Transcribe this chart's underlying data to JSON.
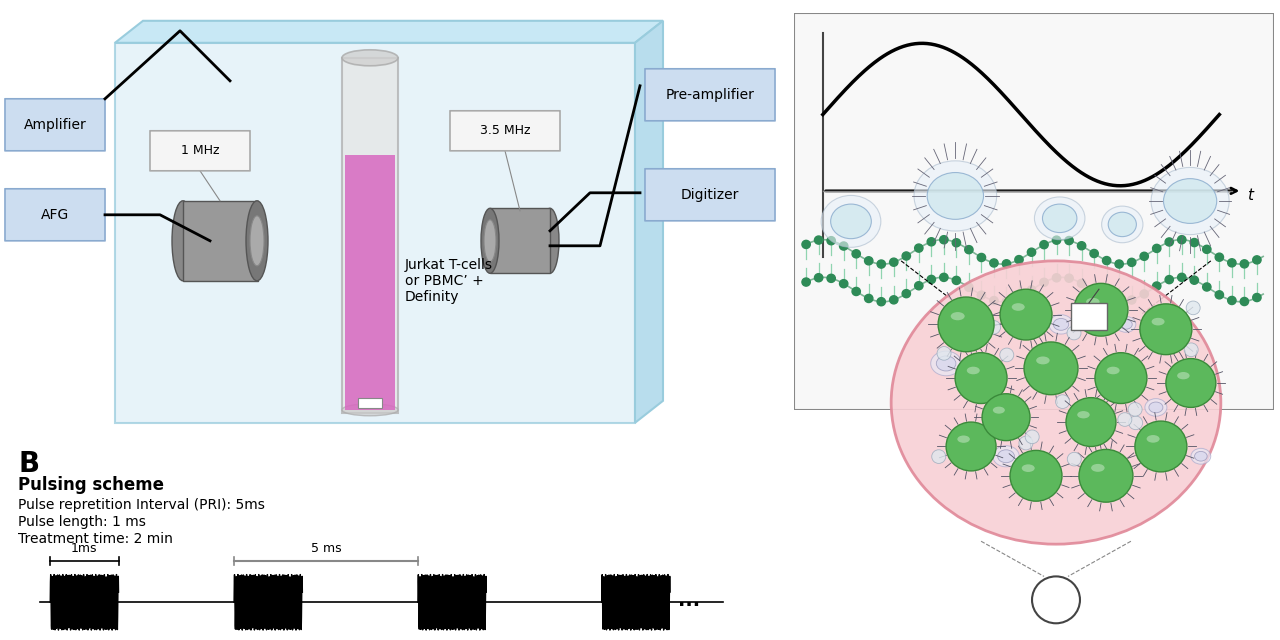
{
  "bg_color": "#ffffff",
  "box_color": "#ccddf0",
  "box_edge": "#8aaacf",
  "tank_color": "#dff0f8",
  "tank_edge": "#99ccdd",
  "freq1_label": "1 MHz",
  "freq2_label": "3.5 MHz",
  "cell_label": "Jurkat T-cells\nor PBMC’ +\nDefinity",
  "amp_label": "Amplifier",
  "afg_label": "AFG",
  "preamp_label": "Pre-amplifier",
  "digi_label": "Digitizer",
  "pulsing_title": "Pulsing scheme",
  "pri_text": "Pulse repretition Interval (PRI): 5ms",
  "pl_text": "Pulse length: 1 ms",
  "tt_text": "Treatment time: 2 min",
  "label_1ms": "1ms",
  "label_5ms": "5 ms",
  "pink_fill": "#f8d0d5",
  "pink_edge": "#e08898",
  "green_fill": "#5cb85c",
  "green_edge": "#3a8a3a",
  "membrane_color": "#2e8b57",
  "membrane_light": "#90d4b0"
}
